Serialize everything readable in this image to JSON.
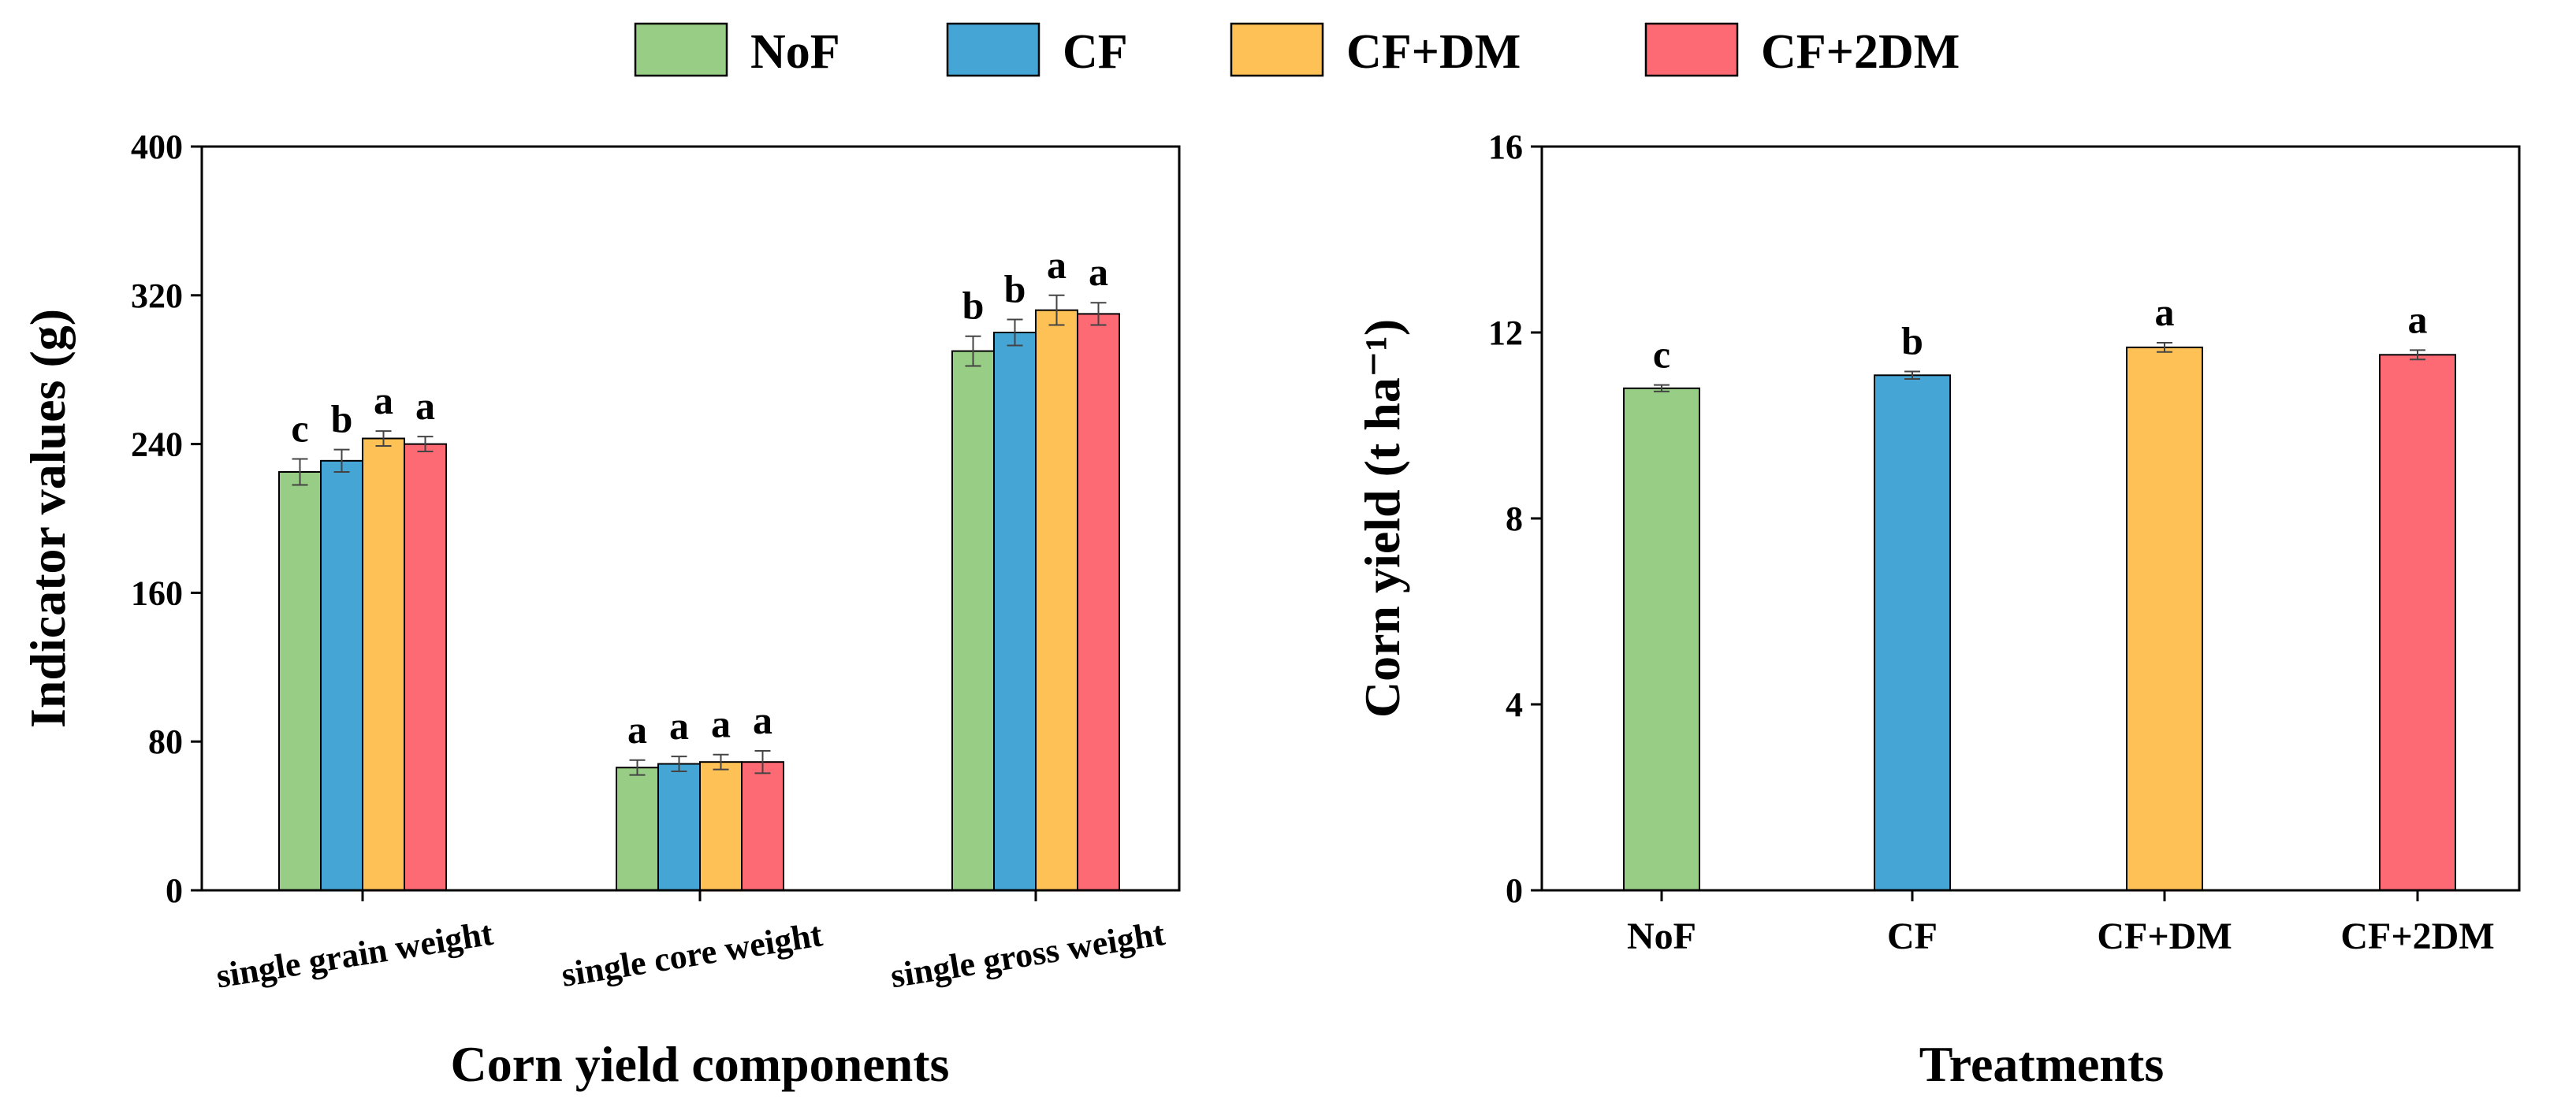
{
  "legend": {
    "items": [
      {
        "label": "NoF",
        "color": "#97CD84"
      },
      {
        "label": "CF",
        "color": "#45A6D5"
      },
      {
        "label": "CF+DM",
        "color": "#FEC155"
      },
      {
        "label": "CF+2DM",
        "color": "#FD6A74"
      }
    ]
  },
  "chart_data": [
    {
      "type": "bar",
      "title": "",
      "xlabel": "Corn yield components",
      "ylabel": "Indicator values (g)",
      "ylim": [
        0,
        400
      ],
      "yticks": [
        0,
        80,
        160,
        240,
        320,
        400
      ],
      "ytick_labels": [
        "0",
        "80",
        "160",
        "240",
        "320",
        "400"
      ],
      "categories": [
        "single grain weight",
        "single core weight",
        "single gross weight"
      ],
      "series": [
        {
          "name": "NoF",
          "color": "#97CD84",
          "values": [
            225,
            66,
            290
          ],
          "errors": [
            7,
            4,
            8
          ],
          "letters": [
            "c",
            "a",
            "b"
          ]
        },
        {
          "name": "CF",
          "color": "#45A6D5",
          "values": [
            231,
            68,
            300
          ],
          "errors": [
            6,
            4,
            7
          ],
          "letters": [
            "b",
            "a",
            "b"
          ]
        },
        {
          "name": "CF+DM",
          "color": "#FEC155",
          "values": [
            243,
            69,
            312
          ],
          "errors": [
            4,
            4,
            8
          ],
          "letters": [
            "a",
            "a",
            "a"
          ]
        },
        {
          "name": "CF+2DM",
          "color": "#FD6A74",
          "values": [
            240,
            69,
            310
          ],
          "errors": [
            4,
            6,
            6
          ],
          "letters": [
            "a",
            "a",
            "a"
          ]
        }
      ]
    },
    {
      "type": "bar",
      "title": "",
      "xlabel": "Treatments",
      "ylabel": "Corn yield (t ha⁻¹)",
      "ylim": [
        0,
        16
      ],
      "yticks": [
        0,
        4,
        8,
        12,
        16
      ],
      "ytick_labels": [
        "0",
        "4",
        "8",
        "12",
        "16"
      ],
      "categories": [
        "NoF",
        "CF",
        "CF+DM",
        "CF+2DM"
      ],
      "values": [
        10.8,
        11.08,
        11.68,
        11.52
      ],
      "errors": [
        0.07,
        0.08,
        0.1,
        0.1
      ],
      "colors": [
        "#97CD84",
        "#45A6D5",
        "#FEC155",
        "#FD6A74"
      ],
      "letters": [
        "c",
        "b",
        "a",
        "a"
      ]
    }
  ]
}
